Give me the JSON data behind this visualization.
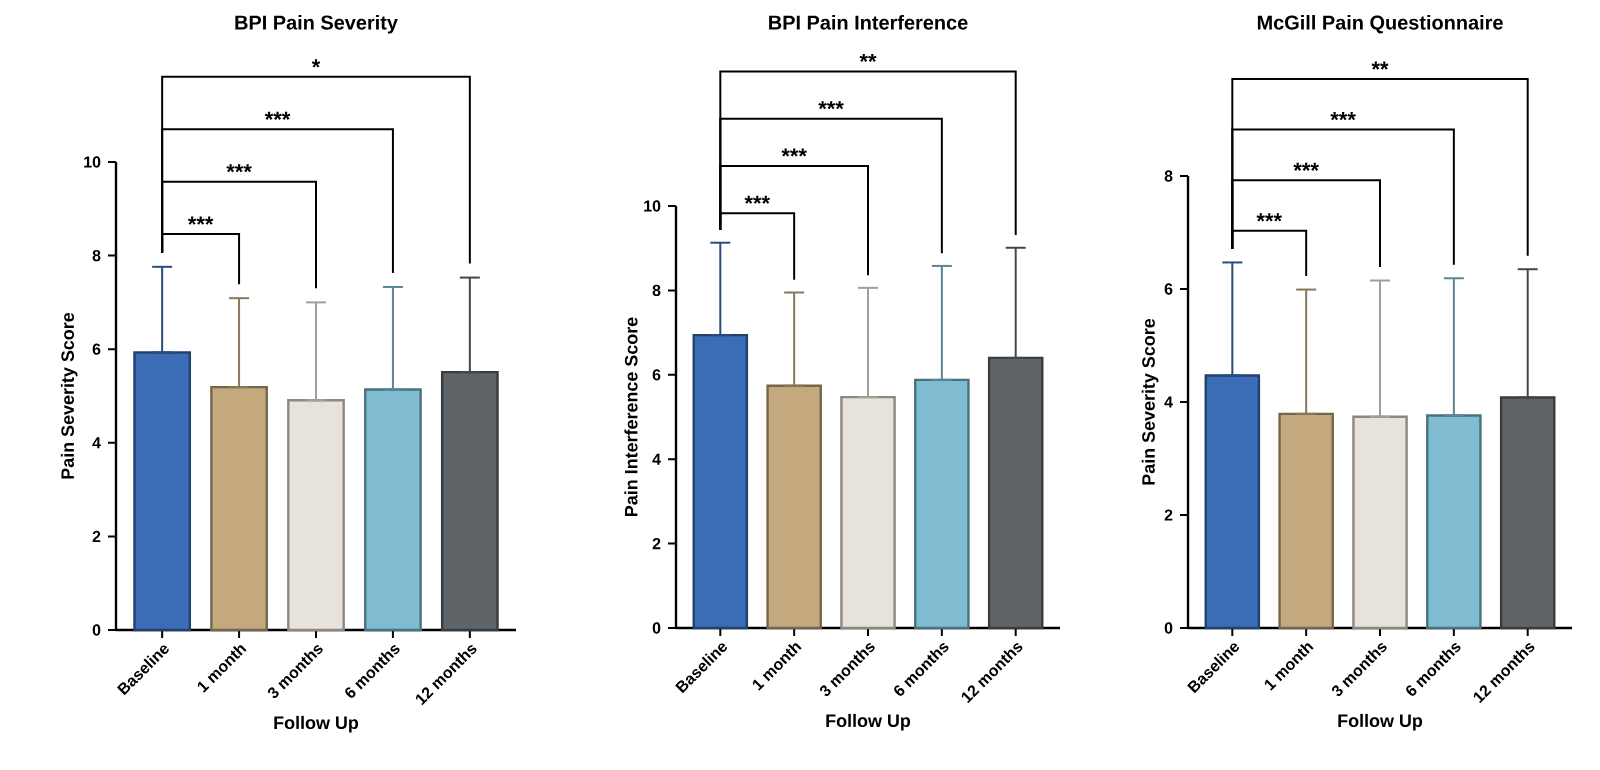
{
  "chart_data": [
    {
      "type": "bar",
      "title": "BPI Pain Severity",
      "xlabel": "Follow Up",
      "ylabel": "Pain Severity Score",
      "categories": [
        "Baseline",
        "1 month",
        "3 months",
        "6 months",
        "12 months"
      ],
      "values": [
        5.93,
        5.19,
        4.91,
        5.14,
        5.51
      ],
      "errors": [
        [
          5.93,
          7.76
        ],
        [
          5.19,
          7.09
        ],
        [
          4.91,
          7.0
        ],
        [
          5.14,
          7.33
        ],
        [
          5.51,
          7.53
        ]
      ],
      "colors": [
        "#3a6db5",
        "#c4a97e",
        "#e8e3da",
        "#7fbcd2",
        "#5f6469"
      ],
      "ylim": [
        0,
        10
      ],
      "yticks": [
        0,
        2,
        4,
        6,
        8,
        10
      ],
      "annotations": [
        "***",
        "***",
        "***",
        "*"
      ]
    },
    {
      "type": "bar",
      "title": "BPI Pain Interference",
      "xlabel": "Follow Up",
      "ylabel": "Pain Interference Score",
      "categories": [
        "Baseline",
        "1 month",
        "3 months",
        "6 months",
        "12 months"
      ],
      "values": [
        6.94,
        5.74,
        5.47,
        5.88,
        6.4
      ],
      "errors": [
        [
          6.94,
          9.13
        ],
        [
          5.74,
          7.95
        ],
        [
          5.47,
          8.06
        ],
        [
          5.88,
          8.58
        ],
        [
          6.4,
          9.01
        ]
      ],
      "colors": [
        "#3a6db5",
        "#c4a97e",
        "#e8e3da",
        "#7fbcd2",
        "#5f6469"
      ],
      "ylim": [
        0,
        10
      ],
      "yticks": [
        0,
        2,
        4,
        6,
        8,
        10
      ],
      "annotations": [
        "***",
        "***",
        "***",
        "**"
      ]
    },
    {
      "type": "bar",
      "title": "McGill Pain Questionnaire",
      "xlabel": "Follow Up",
      "ylabel": "Pain Severity Score",
      "categories": [
        "Baseline",
        "1 month",
        "3 months",
        "6 months",
        "12 months"
      ],
      "values": [
        4.47,
        3.79,
        3.74,
        3.76,
        4.08
      ],
      "errors": [
        [
          4.47,
          6.47
        ],
        [
          3.79,
          5.99
        ],
        [
          3.74,
          6.15
        ],
        [
          3.76,
          6.19
        ],
        [
          4.08,
          6.35
        ]
      ],
      "colors": [
        "#3a6db5",
        "#c4a97e",
        "#e8e3da",
        "#7fbcd2",
        "#5f6469"
      ],
      "ylim": [
        0,
        8
      ],
      "yticks": [
        0,
        2,
        4,
        6,
        8
      ],
      "annotations": [
        "***",
        "***",
        "***",
        "**"
      ]
    }
  ]
}
